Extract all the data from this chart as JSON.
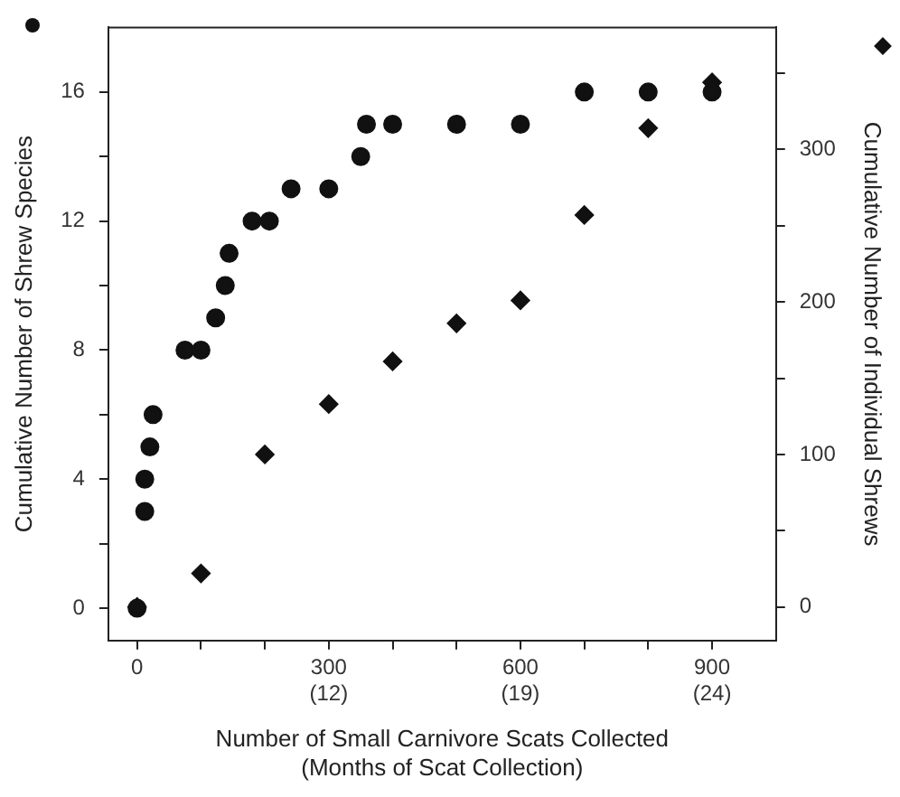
{
  "chart_data": {
    "type": "scatter",
    "xlabel": "Number of Small Carnivore Scats Collected\n(Months of Scat Collection)",
    "ylabel": "Cumulative Number of Shrew Species",
    "y2label": "Cumulative Number of Individual Shrews",
    "xlim": [
      -45,
      1000
    ],
    "xticks": [
      0,
      {
        "value": 100,
        "label": null
      },
      {
        "value": 200,
        "label": null
      },
      300,
      {
        "value": 400,
        "label": null
      },
      {
        "value": 500,
        "label": null
      },
      600,
      {
        "value": 700,
        "label": null
      },
      {
        "value": 800,
        "label": null
      },
      900
    ],
    "annotations": [
      "(12)",
      "(19)",
      "(24)"
    ],
    "ylim": [
      -1,
      18
    ],
    "yticks": [
      0,
      {
        "value": 2,
        "label": null
      },
      4,
      {
        "value": 6,
        "label": null
      },
      8,
      {
        "value": 10,
        "label": null
      },
      12,
      {
        "value": 14,
        "label": null
      },
      16
    ],
    "y2lim": [
      -22,
      380
    ],
    "y2ticks": [
      0,
      {
        "value": 50,
        "label": null
      },
      100,
      {
        "value": 150,
        "label": null
      },
      200,
      {
        "value": 250,
        "label": null
      },
      300,
      {
        "value": 350,
        "label": null
      }
    ],
    "grid": false,
    "legend": false,
    "series": [
      {
        "color": "#111111",
        "marker": "circle",
        "x": [
          0,
          12,
          12,
          20,
          25,
          75,
          100,
          123,
          138,
          144,
          180,
          207,
          241,
          300,
          350,
          359,
          400,
          500,
          600,
          700,
          800,
          900
        ],
        "values": [
          0,
          3,
          4,
          5,
          6,
          8,
          8,
          9,
          10,
          11,
          12,
          12,
          13,
          13,
          14,
          15,
          15,
          15,
          15,
          16,
          16,
          16
        ]
      },
      {
        "color": "#111111",
        "marker": "diamond",
        "axis": "y2",
        "x": [
          0,
          100,
          200,
          300,
          400,
          500,
          600,
          700,
          800,
          900
        ],
        "values": [
          0,
          22,
          100,
          133,
          161,
          186,
          201,
          257,
          314,
          344
        ]
      }
    ]
  }
}
